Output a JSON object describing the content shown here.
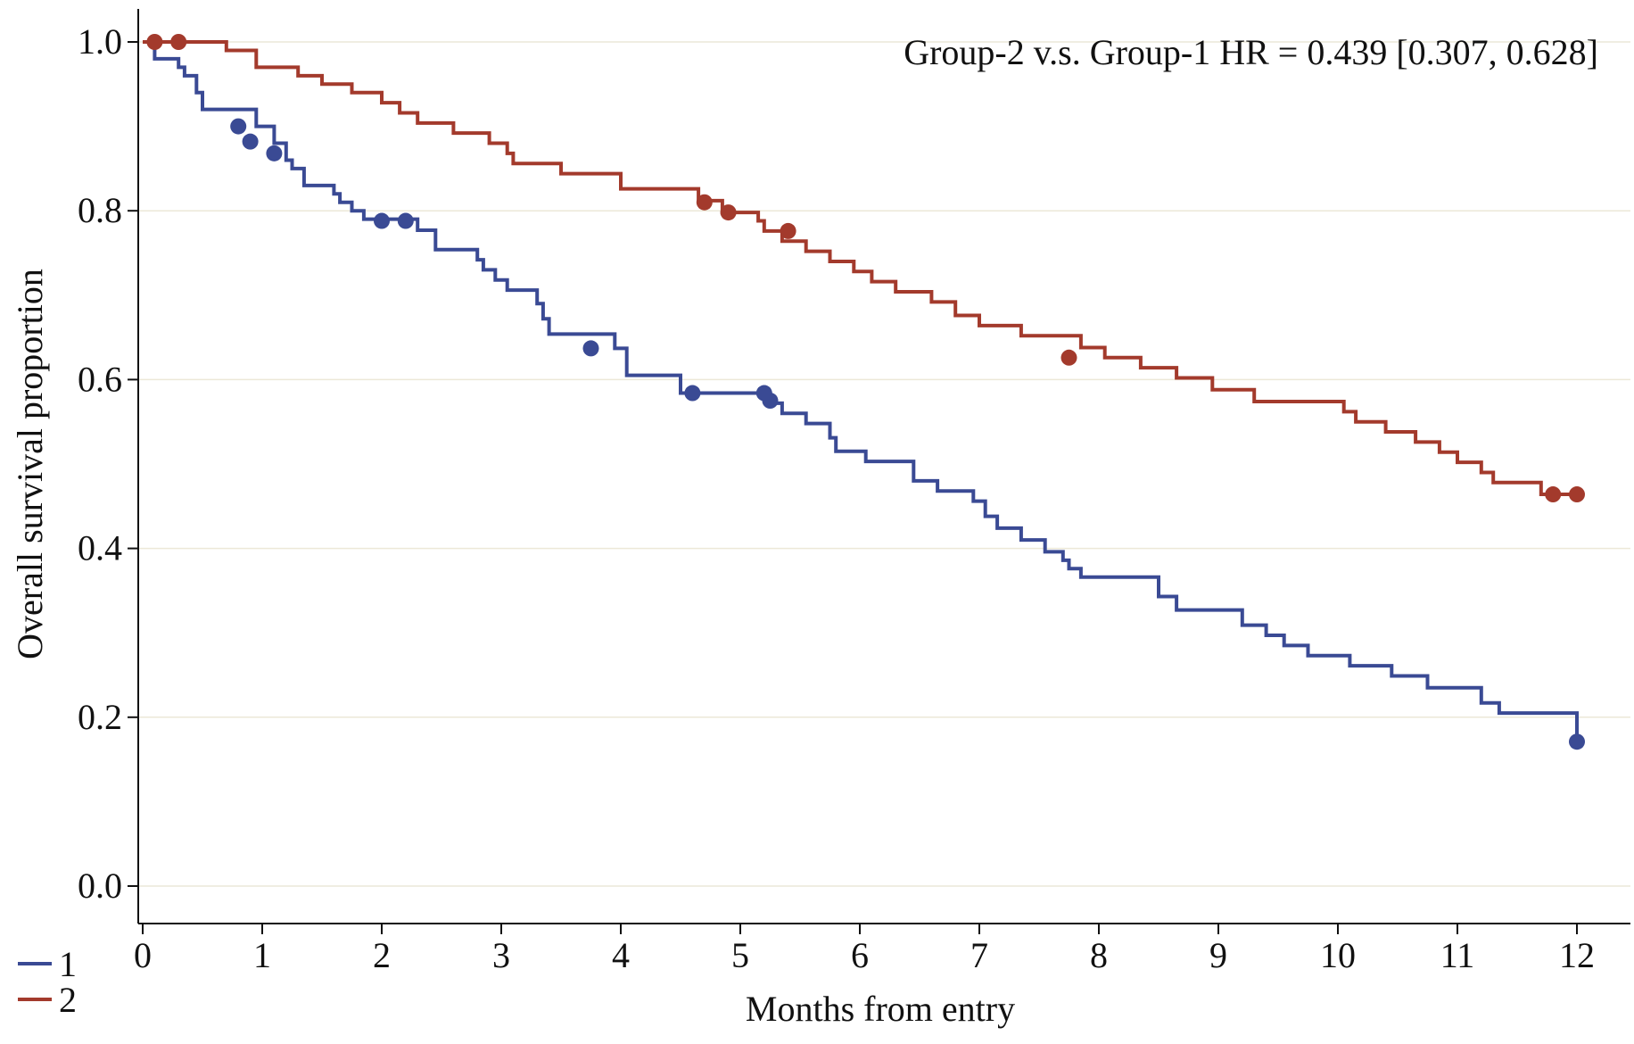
{
  "chart_data": {
    "type": "line",
    "xlabel": "Months from entry",
    "ylabel": "Overall survival proportion",
    "xlim": [
      -0.1,
      12.4
    ],
    "ylim": [
      -0.04,
      1.04
    ],
    "xticks": [
      0,
      1,
      2,
      3,
      4,
      5,
      6,
      7,
      8,
      9,
      10,
      11,
      12
    ],
    "yticks": [
      0.0,
      0.2,
      0.4,
      0.6,
      0.8,
      1.0
    ],
    "ytick_labels": [
      "0.0",
      "0.2",
      "0.4",
      "0.6",
      "0.8",
      "1.0"
    ],
    "xtick_labels": [
      "0",
      "1",
      "2",
      "3",
      "4",
      "5",
      "6",
      "7",
      "8",
      "9",
      "10",
      "11",
      "12"
    ],
    "grid": "horizontal",
    "annotation": "Group-2 v.s. Group-1 HR = 0.439 [0.307, 0.628]",
    "legend_position": "bottom-left",
    "series": [
      {
        "name": "1",
        "color": "#3a4a94",
        "step": true,
        "x": [
          0,
          0.1,
          0.3,
          0.35,
          0.45,
          0.5,
          0.95,
          1.1,
          1.2,
          1.25,
          1.35,
          1.6,
          1.65,
          1.75,
          1.85,
          2.3,
          2.45,
          2.8,
          2.85,
          2.95,
          3.05,
          3.3,
          3.35,
          3.4,
          3.95,
          4.05,
          4.5,
          5.25,
          5.35,
          5.55,
          5.75,
          5.8,
          6.05,
          6.45,
          6.65,
          6.95,
          7.05,
          7.15,
          7.35,
          7.55,
          7.7,
          7.75,
          7.85,
          8.5,
          8.65,
          9.2,
          9.4,
          9.55,
          9.75,
          10.1,
          10.45,
          10.75,
          11.2,
          11.35,
          12.0
        ],
        "y": [
          1.0,
          0.98,
          0.97,
          0.96,
          0.94,
          0.92,
          0.9,
          0.88,
          0.86,
          0.85,
          0.83,
          0.82,
          0.81,
          0.8,
          0.79,
          0.777,
          0.754,
          0.742,
          0.73,
          0.718,
          0.706,
          0.69,
          0.672,
          0.654,
          0.637,
          0.605,
          0.584,
          0.572,
          0.56,
          0.548,
          0.531,
          0.515,
          0.503,
          0.48,
          0.468,
          0.456,
          0.438,
          0.424,
          0.41,
          0.396,
          0.386,
          0.376,
          0.366,
          0.343,
          0.327,
          0.309,
          0.297,
          0.285,
          0.273,
          0.261,
          0.249,
          0.235,
          0.217,
          0.205,
          0.171
        ]
      },
      {
        "name": "2",
        "color": "#a33a2c",
        "step": true,
        "x": [
          0,
          0.7,
          0.95,
          1.3,
          1.5,
          1.75,
          2.0,
          2.15,
          2.3,
          2.6,
          2.9,
          3.05,
          3.1,
          3.5,
          4.0,
          4.65,
          4.85,
          5.15,
          5.2,
          5.35,
          5.55,
          5.75,
          5.95,
          6.1,
          6.3,
          6.6,
          6.8,
          7.0,
          7.35,
          7.85,
          8.05,
          8.35,
          8.65,
          8.95,
          9.3,
          10.05,
          10.15,
          10.4,
          10.65,
          10.85,
          11.0,
          11.2,
          11.3,
          11.7,
          12.0
        ],
        "y": [
          1.0,
          0.99,
          0.97,
          0.96,
          0.95,
          0.94,
          0.928,
          0.916,
          0.904,
          0.892,
          0.88,
          0.868,
          0.856,
          0.844,
          0.826,
          0.812,
          0.798,
          0.788,
          0.776,
          0.764,
          0.752,
          0.74,
          0.728,
          0.716,
          0.704,
          0.692,
          0.676,
          0.664,
          0.652,
          0.638,
          0.626,
          0.614,
          0.602,
          0.588,
          0.574,
          0.562,
          0.55,
          0.538,
          0.526,
          0.514,
          0.502,
          0.49,
          0.478,
          0.464,
          0.464
        ]
      }
    ],
    "censored": [
      {
        "series": "1",
        "x": [
          0.8,
          0.9,
          1.1,
          2.0,
          2.2,
          3.75,
          4.6,
          5.2,
          5.25,
          12.0
        ],
        "y": [
          0.9,
          0.882,
          0.868,
          0.788,
          0.788,
          0.637,
          0.584,
          0.584,
          0.575,
          0.171
        ]
      },
      {
        "series": "2",
        "x": [
          0.1,
          0.3,
          4.7,
          4.9,
          5.4,
          7.75,
          11.8,
          12.0
        ],
        "y": [
          1.0,
          1.0,
          0.81,
          0.798,
          0.776,
          0.626,
          0.464,
          0.464
        ]
      }
    ]
  }
}
